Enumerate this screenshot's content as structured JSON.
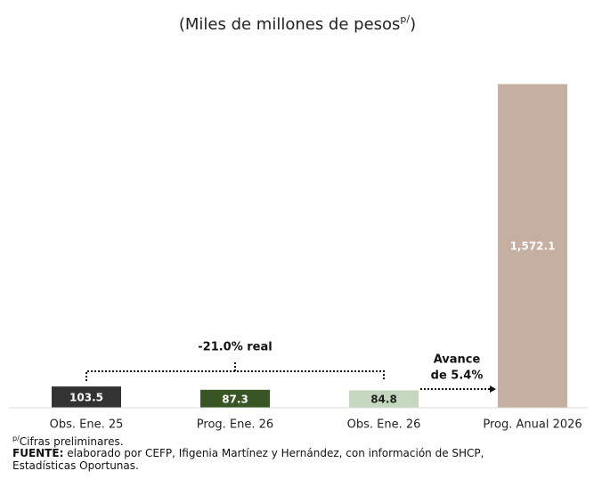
{
  "chart_data": {
    "type": "bar",
    "title": "(Miles de millones de pesos",
    "title_superscript": "p/",
    "title_end": ")",
    "categories": [
      "Obs. Ene. 25",
      "Prog. Ene. 26",
      "Obs. Ene. 26",
      "Prog. Anual 2026"
    ],
    "values": [
      103.5,
      87.3,
      84.8,
      1572.1
    ],
    "value_labels": [
      "103.5",
      "87.3",
      "84.8",
      "1,572.1"
    ],
    "colors": [
      "#333333",
      "#375623",
      "#c5d8bf",
      "#c4afa0"
    ],
    "label_colors": [
      "#ffffff",
      "#ffffff",
      "#222222",
      "#ffffff"
    ],
    "ylim": [
      0,
      1600
    ],
    "annotations": {
      "change": "-21.0% real",
      "progress": [
        "Avance",
        "de 5.4%"
      ]
    },
    "footnote": {
      "superscript": "p/",
      "text": "Cifras preliminares."
    },
    "source": {
      "label": "FUENTE:",
      "lines": [
        "elaborado por CEFP, Ifigenia Martínez y Hernández, con información de SHCP,",
        "Estadísticas Oportunas."
      ]
    }
  }
}
